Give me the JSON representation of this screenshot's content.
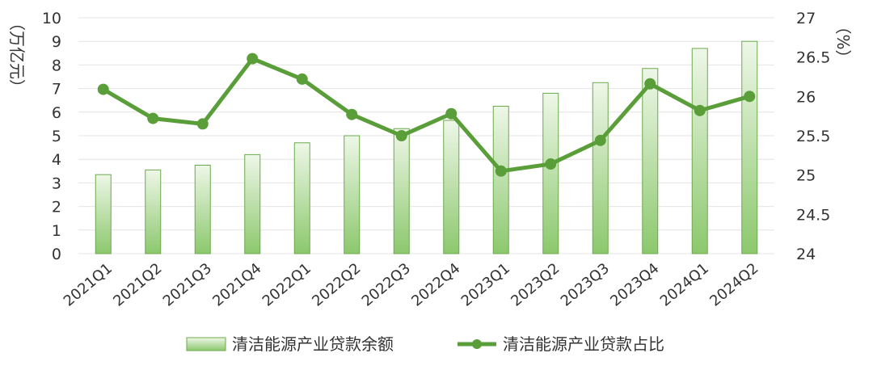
{
  "chart_data": {
    "type": "bar",
    "categories": [
      "2021Q1",
      "2021Q2",
      "2021Q3",
      "2021Q4",
      "2022Q1",
      "2022Q2",
      "2022Q3",
      "2022Q4",
      "2023Q1",
      "2023Q2",
      "2023Q3",
      "2023Q4",
      "2024Q1",
      "2024Q2"
    ],
    "series": [
      {
        "name": "清洁能源产业贷款余额",
        "type": "bar",
        "axis": "left",
        "values": [
          3.35,
          3.55,
          3.75,
          4.2,
          4.7,
          5.0,
          5.3,
          5.65,
          6.25,
          6.8,
          7.25,
          7.85,
          8.7,
          9.0
        ]
      },
      {
        "name": "清洁能源产业贷款占比",
        "type": "line",
        "axis": "right",
        "values": [
          26.09,
          25.72,
          25.65,
          26.48,
          26.22,
          25.77,
          25.5,
          25.78,
          25.05,
          25.14,
          25.44,
          26.16,
          25.82,
          26.0
        ]
      }
    ],
    "left_axis": {
      "label": "（万亿元）",
      "ylim": [
        0,
        10
      ],
      "ticks": [
        "0",
        "1",
        "2",
        "3",
        "4",
        "5",
        "6",
        "7",
        "8",
        "9",
        "10"
      ]
    },
    "right_axis": {
      "label": "（%）",
      "ylim": [
        24,
        27
      ],
      "ticks": [
        "24",
        "24.5",
        "25",
        "25.5",
        "26",
        "26.5",
        "27"
      ]
    },
    "grid": true,
    "legend_position": "bottom",
    "colors": {
      "bar_fill_top": "#e9f4e2",
      "bar_fill_bottom": "#8cc86d",
      "bar_stroke": "#6aaa4b",
      "line": "#5a9e3a"
    }
  }
}
